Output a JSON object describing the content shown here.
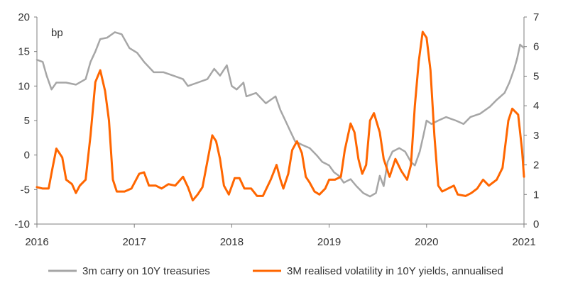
{
  "chart_data": {
    "type": "line",
    "unit_label": "bp",
    "x_ticks": [
      "2016",
      "2017",
      "2018",
      "2019",
      "2020",
      "2021"
    ],
    "xlim": [
      2016,
      2021
    ],
    "y_left": {
      "ticks": [
        "20",
        "15",
        "10",
        "5",
        "0",
        "-5",
        "-10"
      ],
      "ylim": [
        -10,
        20
      ]
    },
    "y_right": {
      "ticks": [
        "7",
        "6",
        "5",
        "4",
        "3",
        "2",
        "1",
        "0"
      ],
      "ylim": [
        0,
        7
      ]
    },
    "grid": false,
    "legend_position": "bottom",
    "series": [
      {
        "name": "3m carry on 10Y treasuries",
        "axis": "left",
        "color": "#a6a6a6",
        "points": [
          [
            2016.0,
            13.8
          ],
          [
            2016.06,
            13.5
          ],
          [
            2016.1,
            11.5
          ],
          [
            2016.15,
            9.5
          ],
          [
            2016.2,
            10.5
          ],
          [
            2016.3,
            10.5
          ],
          [
            2016.4,
            10.2
          ],
          [
            2016.5,
            11.0
          ],
          [
            2016.55,
            13.5
          ],
          [
            2016.6,
            15.0
          ],
          [
            2016.65,
            16.8
          ],
          [
            2016.72,
            17.0
          ],
          [
            2016.8,
            17.8
          ],
          [
            2016.87,
            17.5
          ],
          [
            2016.95,
            15.5
          ],
          [
            2017.03,
            14.8
          ],
          [
            2017.1,
            13.5
          ],
          [
            2017.2,
            12.0
          ],
          [
            2017.3,
            12.0
          ],
          [
            2017.4,
            11.5
          ],
          [
            2017.5,
            11.0
          ],
          [
            2017.55,
            10.0
          ],
          [
            2017.65,
            10.5
          ],
          [
            2017.75,
            11.0
          ],
          [
            2017.82,
            12.5
          ],
          [
            2017.88,
            11.5
          ],
          [
            2017.95,
            13.0
          ],
          [
            2018.0,
            10.0
          ],
          [
            2018.05,
            9.5
          ],
          [
            2018.12,
            10.5
          ],
          [
            2018.15,
            8.5
          ],
          [
            2018.25,
            9.0
          ],
          [
            2018.35,
            7.5
          ],
          [
            2018.45,
            8.5
          ],
          [
            2018.5,
            6.5
          ],
          [
            2018.55,
            5.0
          ],
          [
            2018.6,
            3.5
          ],
          [
            2018.65,
            2.0
          ],
          [
            2018.72,
            1.5
          ],
          [
            2018.8,
            1.0
          ],
          [
            2018.87,
            0.0
          ],
          [
            2018.93,
            -1.0
          ],
          [
            2019.0,
            -1.5
          ],
          [
            2019.05,
            -2.5
          ],
          [
            2019.1,
            -3.0
          ],
          [
            2019.15,
            -4.0
          ],
          [
            2019.22,
            -3.5
          ],
          [
            2019.28,
            -4.5
          ],
          [
            2019.35,
            -5.5
          ],
          [
            2019.42,
            -6.0
          ],
          [
            2019.48,
            -5.5
          ],
          [
            2019.52,
            -3.0
          ],
          [
            2019.56,
            -4.5
          ],
          [
            2019.6,
            -1.0
          ],
          [
            2019.65,
            0.5
          ],
          [
            2019.72,
            1.0
          ],
          [
            2019.78,
            0.5
          ],
          [
            2019.84,
            -1.0
          ],
          [
            2019.88,
            -1.5
          ],
          [
            2019.93,
            0.5
          ],
          [
            2019.97,
            3.0
          ],
          [
            2020.0,
            5.0
          ],
          [
            2020.05,
            4.5
          ],
          [
            2020.12,
            5.0
          ],
          [
            2020.2,
            5.5
          ],
          [
            2020.3,
            5.0
          ],
          [
            2020.38,
            4.5
          ],
          [
            2020.45,
            5.5
          ],
          [
            2020.55,
            6.0
          ],
          [
            2020.65,
            7.0
          ],
          [
            2020.72,
            8.0
          ],
          [
            2020.8,
            9.0
          ],
          [
            2020.85,
            10.5
          ],
          [
            2020.9,
            12.5
          ],
          [
            2020.93,
            14.0
          ],
          [
            2020.96,
            16.0
          ],
          [
            2021.0,
            15.5
          ]
        ]
      },
      {
        "name": "3M realised volatility in 10Y yields, annualised",
        "axis": "right",
        "color": "#ff6600",
        "points": [
          [
            2016.0,
            1.25
          ],
          [
            2016.06,
            1.2
          ],
          [
            2016.12,
            1.2
          ],
          [
            2016.16,
            1.9
          ],
          [
            2016.2,
            2.55
          ],
          [
            2016.26,
            2.25
          ],
          [
            2016.3,
            1.5
          ],
          [
            2016.36,
            1.35
          ],
          [
            2016.4,
            1.05
          ],
          [
            2016.44,
            1.3
          ],
          [
            2016.5,
            1.5
          ],
          [
            2016.55,
            3.0
          ],
          [
            2016.6,
            4.8
          ],
          [
            2016.65,
            5.2
          ],
          [
            2016.7,
            4.5
          ],
          [
            2016.74,
            3.5
          ],
          [
            2016.78,
            1.5
          ],
          [
            2016.82,
            1.1
          ],
          [
            2016.9,
            1.1
          ],
          [
            2016.97,
            1.2
          ],
          [
            2017.05,
            1.7
          ],
          [
            2017.1,
            1.75
          ],
          [
            2017.15,
            1.3
          ],
          [
            2017.22,
            1.3
          ],
          [
            2017.28,
            1.2
          ],
          [
            2017.35,
            1.35
          ],
          [
            2017.42,
            1.3
          ],
          [
            2017.5,
            1.6
          ],
          [
            2017.55,
            1.25
          ],
          [
            2017.6,
            0.8
          ],
          [
            2017.65,
            1.0
          ],
          [
            2017.7,
            1.25
          ],
          [
            2017.76,
            2.3
          ],
          [
            2017.8,
            3.0
          ],
          [
            2017.84,
            2.8
          ],
          [
            2017.88,
            2.2
          ],
          [
            2017.92,
            1.3
          ],
          [
            2017.97,
            1.0
          ],
          [
            2018.03,
            1.55
          ],
          [
            2018.08,
            1.55
          ],
          [
            2018.13,
            1.2
          ],
          [
            2018.2,
            1.2
          ],
          [
            2018.26,
            0.95
          ],
          [
            2018.32,
            0.95
          ],
          [
            2018.4,
            1.5
          ],
          [
            2018.46,
            2.0
          ],
          [
            2018.5,
            1.5
          ],
          [
            2018.53,
            1.2
          ],
          [
            2018.58,
            1.7
          ],
          [
            2018.62,
            2.5
          ],
          [
            2018.67,
            2.8
          ],
          [
            2018.72,
            2.4
          ],
          [
            2018.76,
            1.6
          ],
          [
            2018.8,
            1.4
          ],
          [
            2018.85,
            1.1
          ],
          [
            2018.9,
            1.0
          ],
          [
            2018.96,
            1.2
          ],
          [
            2019.0,
            1.5
          ],
          [
            2019.06,
            1.5
          ],
          [
            2019.12,
            1.6
          ],
          [
            2019.16,
            2.5
          ],
          [
            2019.22,
            3.4
          ],
          [
            2019.26,
            3.1
          ],
          [
            2019.3,
            2.2
          ],
          [
            2019.34,
            1.7
          ],
          [
            2019.38,
            2.0
          ],
          [
            2019.42,
            3.5
          ],
          [
            2019.46,
            3.75
          ],
          [
            2019.52,
            3.1
          ],
          [
            2019.56,
            2.2
          ],
          [
            2019.62,
            1.6
          ],
          [
            2019.68,
            2.2
          ],
          [
            2019.74,
            1.8
          ],
          [
            2019.8,
            1.5
          ],
          [
            2019.84,
            2.0
          ],
          [
            2019.88,
            4.0
          ],
          [
            2019.92,
            5.5
          ],
          [
            2019.96,
            6.5
          ],
          [
            2020.0,
            6.3
          ],
          [
            2020.04,
            5.2
          ],
          [
            2020.08,
            3.0
          ],
          [
            2020.12,
            1.3
          ],
          [
            2020.16,
            1.1
          ],
          [
            2020.22,
            1.2
          ],
          [
            2020.28,
            1.3
          ],
          [
            2020.32,
            1.0
          ],
          [
            2020.4,
            0.95
          ],
          [
            2020.46,
            1.05
          ],
          [
            2020.52,
            1.2
          ],
          [
            2020.58,
            1.5
          ],
          [
            2020.64,
            1.3
          ],
          [
            2020.72,
            1.5
          ],
          [
            2020.78,
            1.9
          ],
          [
            2020.84,
            3.5
          ],
          [
            2020.88,
            3.9
          ],
          [
            2020.94,
            3.7
          ],
          [
            2020.98,
            2.5
          ],
          [
            2021.0,
            1.6
          ]
        ]
      }
    ]
  }
}
